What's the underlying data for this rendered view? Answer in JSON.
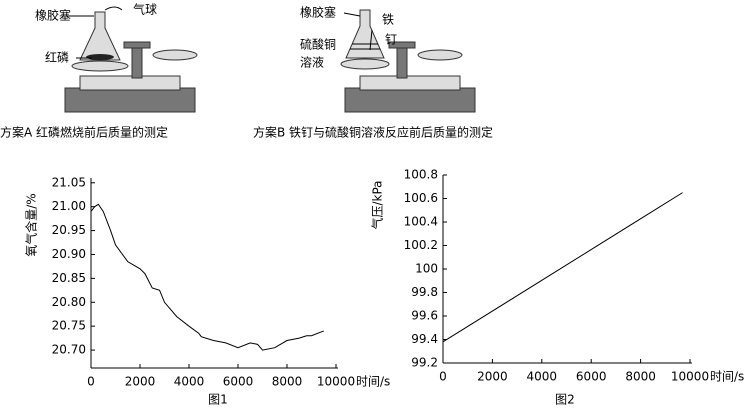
{
  "figures": [
    {
      "labels": [
        "橡胶塞",
        "气球",
        "红磷"
      ],
      "caption": "方案A 红磷燃烧前后质量的测定"
    },
    {
      "labels": [
        "橡胶塞",
        "铁",
        "钉",
        "硫酸铜",
        "溶液"
      ],
      "caption": "方案B 铁钉与硫酸铜溶液反应前后质量的测定"
    }
  ],
  "chart_data": [
    {
      "type": "line",
      "caption": "图1",
      "x_label": "时间/s",
      "y_label": "氧气含量/%",
      "x": [
        0,
        150,
        300,
        500,
        800,
        1000,
        1500,
        2000,
        2200,
        2500,
        2800,
        3000,
        3500,
        4000,
        4400,
        4500,
        5000,
        5500,
        6000,
        6500,
        6800,
        7000,
        7500,
        8000,
        8500,
        8800,
        9000,
        9500
      ],
      "series": [
        {
          "color": "#000000",
          "values": [
            20.99,
            21.0,
            21.005,
            20.99,
            20.95,
            20.92,
            20.885,
            20.87,
            20.86,
            20.83,
            20.825,
            20.8,
            20.77,
            20.75,
            20.735,
            20.728,
            20.72,
            20.715,
            20.705,
            20.715,
            20.712,
            20.7,
            20.705,
            20.72,
            20.725,
            20.73,
            20.73,
            20.74
          ]
        }
      ],
      "xlim": [
        0,
        10000
      ],
      "xticks": [
        0,
        2000,
        4000,
        6000,
        8000,
        10000
      ],
      "ylim": [
        20.6625,
        21.06
      ],
      "yticks": [
        {
          "value": 20.7,
          "label": "20.70"
        },
        20.75,
        {
          "value": 20.8,
          "label": "20.80"
        },
        20.85,
        {
          "value": 20.9,
          "label": "20.90"
        },
        20.95,
        {
          "value": 21.0,
          "label": "21.00"
        },
        21.05
      ]
    },
    {
      "type": "line",
      "caption": "图2",
      "x_label": "时间/s",
      "y_label": "气压/kPa",
      "x": [
        0,
        9700
      ],
      "series": [
        {
          "color": "#000000",
          "values": [
            99.38,
            100.65
          ]
        }
      ],
      "xlim": [
        0,
        10000
      ],
      "xticks": [
        0,
        2000,
        4000,
        6000,
        8000,
        10000
      ],
      "ylim": [
        99.2,
        100.8
      ],
      "yticks": [
        99.2,
        99.4,
        99.6,
        99.8,
        100,
        100.2,
        100.4,
        100.6,
        100.8
      ]
    }
  ]
}
